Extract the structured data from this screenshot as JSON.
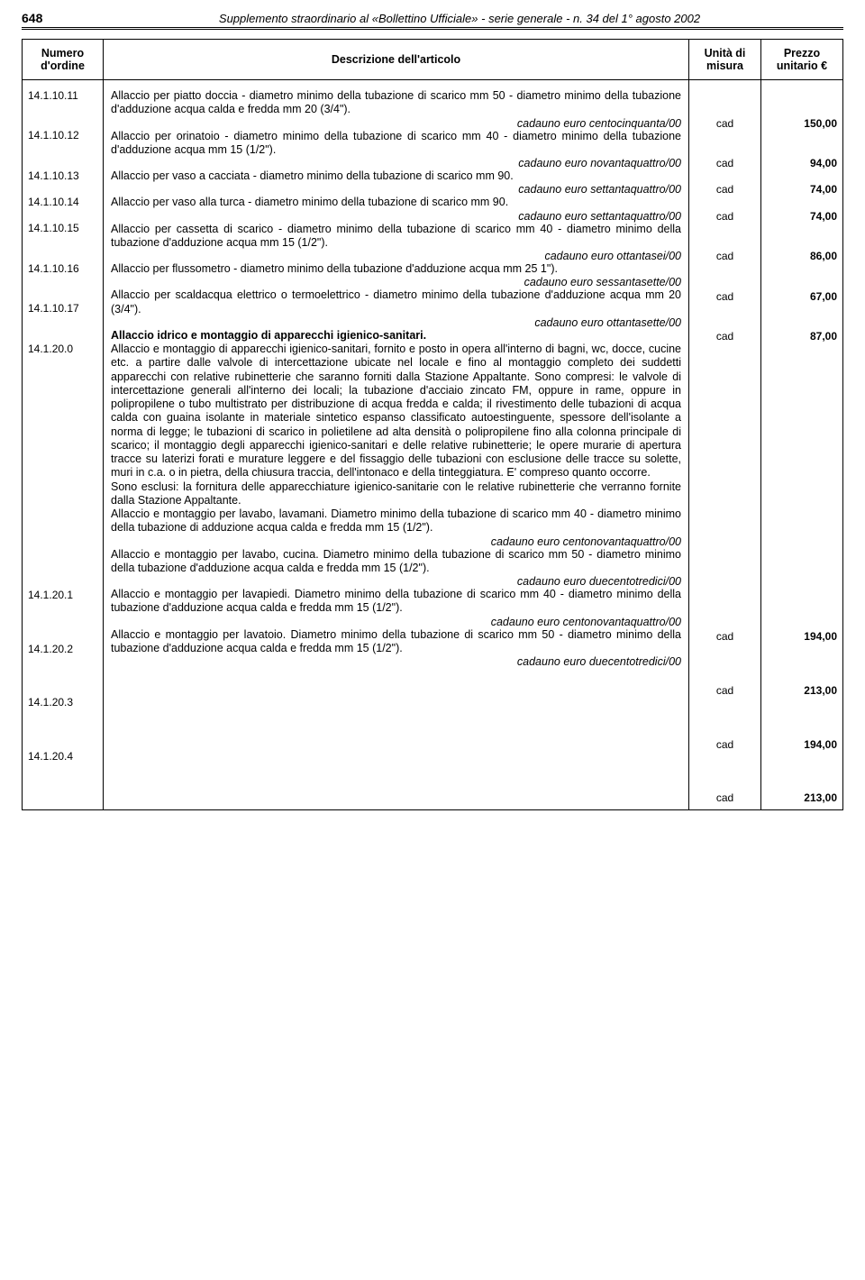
{
  "header": {
    "page_number": "648",
    "title": "Supplemento straordinario al «Bollettino Ufficiale» - serie generale - n. 34 del 1° agosto 2002"
  },
  "columns": {
    "num": "Numero d'ordine",
    "desc": "Descrizione dell'articolo",
    "unit": "Unità di misura",
    "price": "Prezzo unitario €"
  },
  "rows": [
    {
      "num": "14.1.10.11",
      "desc": "Allaccio per piatto doccia - diametro minimo della tubazione di scarico mm 50 - diametro minimo della tubazione d'adduzione acqua calda e fredda mm 20 (3/4\").",
      "price_label": "cadauno euro centocinquanta/00",
      "unit": "cad",
      "price": "150,00"
    },
    {
      "num": "14.1.10.12",
      "desc": "Allaccio per orinatoio - diametro minimo della tubazione di scarico mm 40 - diametro minimo della tubazione d'adduzione acqua mm 15 (1/2\").",
      "price_label": "cadauno euro novantaquattro/00",
      "unit": "cad",
      "price": "94,00"
    },
    {
      "num": "14.1.10.13",
      "desc": "Allaccio per vaso a cacciata - diametro minimo della tubazione di scarico mm 90.",
      "price_label": "cadauno euro settantaquattro/00",
      "unit": "cad",
      "price": "74,00"
    },
    {
      "num": "14.1.10.14",
      "desc": "Allaccio per vaso alla turca - diametro minimo della tubazione di scarico mm 90.",
      "price_label": "cadauno euro settantaquattro/00",
      "unit": "cad",
      "price": "74,00"
    },
    {
      "num": "14.1.10.15",
      "desc": "Allaccio per cassetta di scarico - diametro minimo della tubazione di scarico mm 40 - diametro minimo della tubazione d'adduzione acqua mm 15 (1/2\").",
      "price_label": "cadauno euro ottantasei/00",
      "unit": "cad",
      "price": "86,00"
    },
    {
      "num": "14.1.10.16",
      "desc": "Allaccio per flussometro - diametro minimo della tubazione d'adduzione acqua mm 25   1\").",
      "price_label": "cadauno euro sessantasette/00",
      "unit": "cad",
      "price": "67,00"
    },
    {
      "num": "14.1.10.17",
      "desc": "Allaccio per scaldacqua elettrico o termoelettrico - diametro minimo della tubazione d'adduzione acqua mm 20 (3/4\").",
      "price_label": "cadauno euro ottantasette/00",
      "unit": "cad",
      "price": "87,00"
    },
    {
      "num": "14.1.20.0",
      "bold_title": "Allaccio idrico e montaggio di apparecchi igienico-sanitari.",
      "desc": "Allaccio e montaggio di apparecchi igienico-sanitari, fornito e posto in opera all'interno di bagni, wc, docce, cucine etc. a partire dalle valvole di intercettazione ubicate nel locale e fino al montaggio completo dei suddetti apparecchi con relative rubinetterie che saranno forniti dalla Stazione Appaltante. Sono compresi: le valvole di intercettazione generali all'interno dei locali; la tubazione d'acciaio zincato FM, oppure in rame, oppure in polipropilene o tubo multistrato per distribuzione di acqua fredda e calda; il rivestimento delle tubazioni di acqua calda con guaina isolante in materiale sintetico espanso classificato autoestinguente, spessore dell'isolante a norma di legge; le tubazioni di scarico in polietilene ad alta densità o polipropilene fino alla colonna principale di scarico; il montaggio degli apparecchi igienico-sanitari e delle relative rubinetterie; le opere murarie di apertura tracce su laterizi forati e murature leggere e del fissaggio delle tubazioni con esclusione delle tracce su solette, muri in c.a. o in pietra, della chiusura traccia, dell'intonaco e della tinteggiatura. E' compreso quanto occorre.",
      "desc2": "Sono esclusi: la fornitura delle apparecchiature igienico-sanitarie con le relative rubinetterie che verranno fornite dalla Stazione Appaltante."
    },
    {
      "num": "14.1.20.1",
      "desc": "Allaccio e montaggio per lavabo, lavamani. Diametro minimo della tubazione di scarico mm 40 - diametro minimo della tubazione di adduzione acqua calda e fredda mm 15 (1/2\").",
      "price_label": "cadauno euro centonovantaquattro/00",
      "unit": "cad",
      "price": "194,00"
    },
    {
      "num": "14.1.20.2",
      "desc": "Allaccio e montaggio per lavabo, cucina. Diametro minimo della tubazione di scarico mm 50 - diametro minimo della tubazione d'adduzione acqua calda e fredda mm 15 (1/2\").",
      "price_label": "cadauno euro duecentotredici/00",
      "unit": "cad",
      "price": "213,00"
    },
    {
      "num": "14.1.20.3",
      "desc": "Allaccio e montaggio per lavapiedi. Diametro minimo della tubazione di scarico mm 40 - diametro minimo della tubazione d'adduzione acqua calda e fredda mm 15 (1/2\").",
      "price_label": "cadauno euro centonovantaquattro/00",
      "unit": "cad",
      "price": "194,00"
    },
    {
      "num": "14.1.20.4",
      "desc": "Allaccio e montaggio per lavatoio. Diametro minimo della tubazione di scarico mm 50 - diametro minimo della tubazione d'adduzione acqua calda e fredda mm 15 (1/2\").",
      "price_label": "cadauno euro duecentotredici/00",
      "unit": "cad",
      "price": "213,00"
    }
  ]
}
